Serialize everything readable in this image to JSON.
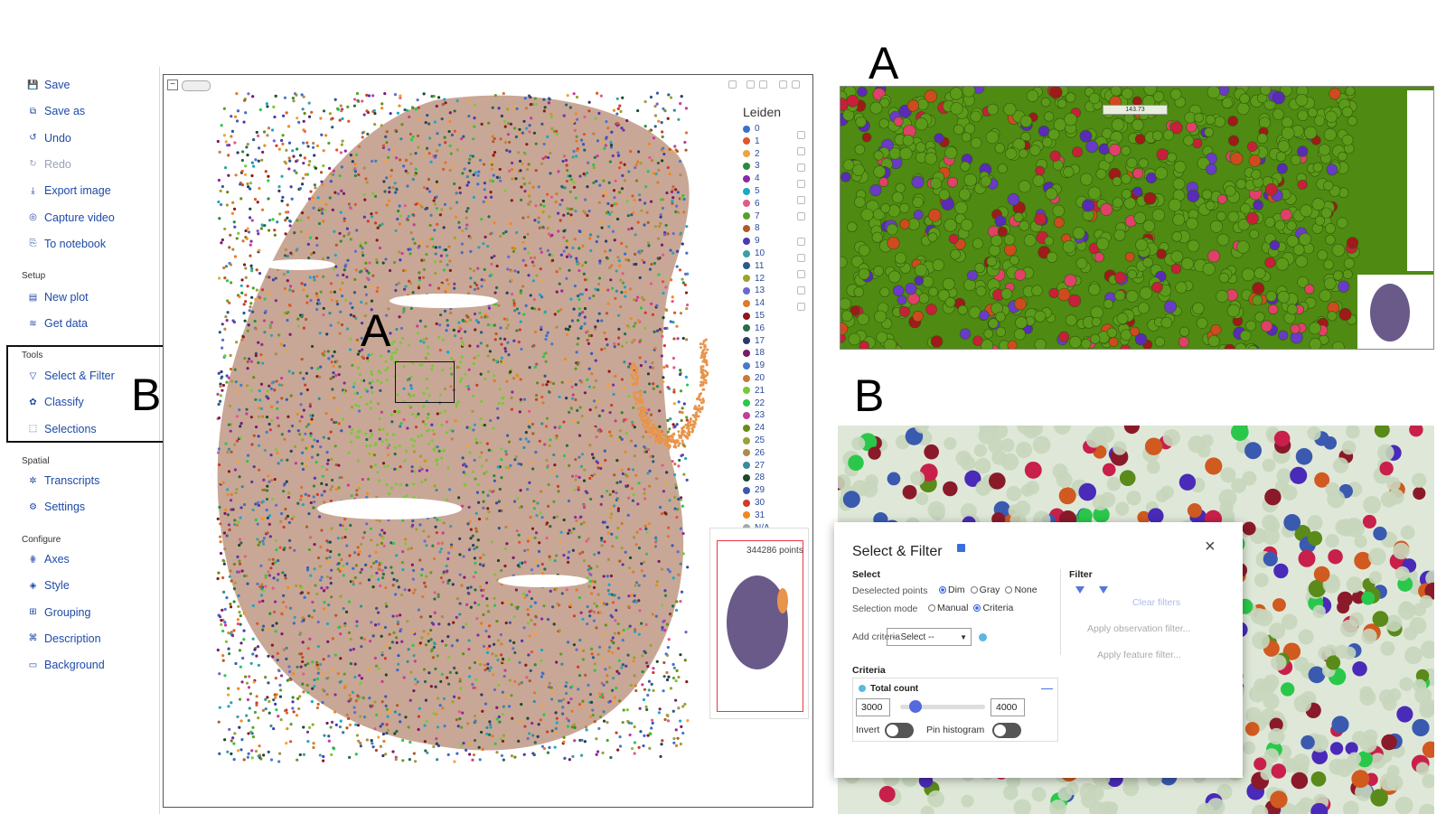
{
  "figure_labels": {
    "panel_a_letter": "A",
    "panel_b_letter": "B",
    "region_a_letter": "A",
    "tools_b_letter": "B"
  },
  "sidebar": {
    "file_items": [
      {
        "label": "Save",
        "icon": "save-icon",
        "disabled": false
      },
      {
        "label": "Save as",
        "icon": "save-as-icon",
        "disabled": false
      },
      {
        "label": "Undo",
        "icon": "undo-icon",
        "disabled": false
      },
      {
        "label": "Redo",
        "icon": "redo-icon",
        "disabled": true
      },
      {
        "label": "Export image",
        "icon": "download-icon",
        "disabled": false
      },
      {
        "label": "Capture video",
        "icon": "camera-icon",
        "disabled": false
      },
      {
        "label": "To notebook",
        "icon": "notebook-icon",
        "disabled": false
      }
    ],
    "setup_title": "Setup",
    "setup_items": [
      {
        "label": "New plot",
        "icon": "new-plot-icon"
      },
      {
        "label": "Get data",
        "icon": "database-icon"
      }
    ],
    "tools_title": "Tools",
    "tools_items": [
      {
        "label": "Select & Filter",
        "icon": "filter-icon"
      },
      {
        "label": "Classify",
        "icon": "classify-icon"
      },
      {
        "label": "Selections",
        "icon": "selections-icon"
      }
    ],
    "spatial_title": "Spatial",
    "spatial_items": [
      {
        "label": "Transcripts",
        "icon": "transcripts-icon"
      },
      {
        "label": "Settings",
        "icon": "gear-icon"
      }
    ],
    "configure_title": "Configure",
    "configure_items": [
      {
        "label": "Axes",
        "icon": "axes-icon"
      },
      {
        "label": "Style",
        "icon": "style-icon"
      },
      {
        "label": "Grouping",
        "icon": "grouping-icon"
      },
      {
        "label": "Description",
        "icon": "description-icon"
      },
      {
        "label": "Background",
        "icon": "background-icon"
      }
    ],
    "accent_color": "#1e4aa8"
  },
  "main_plot": {
    "legend_title": "Leiden",
    "legend": [
      {
        "label": "0",
        "color": "#3b6fc9"
      },
      {
        "label": "1",
        "color": "#e0562a"
      },
      {
        "label": "2",
        "color": "#f0a43a"
      },
      {
        "label": "3",
        "color": "#2a8a3a"
      },
      {
        "label": "4",
        "color": "#8a2aa0"
      },
      {
        "label": "5",
        "color": "#1aa8c8"
      },
      {
        "label": "6",
        "color": "#e05a8a"
      },
      {
        "label": "7",
        "color": "#5aa02a"
      },
      {
        "label": "8",
        "color": "#b05a2a"
      },
      {
        "label": "9",
        "color": "#4a3ab0"
      },
      {
        "label": "10",
        "color": "#3aa0a0"
      },
      {
        "label": "11",
        "color": "#2a5a8a"
      },
      {
        "label": "12",
        "color": "#a0a02a"
      },
      {
        "label": "13",
        "color": "#6a6ac8"
      },
      {
        "label": "14",
        "color": "#e07a2a"
      },
      {
        "label": "15",
        "color": "#8a1a1a"
      },
      {
        "label": "16",
        "color": "#2a6a4a"
      },
      {
        "label": "17",
        "color": "#2a3a6a"
      },
      {
        "label": "18",
        "color": "#7a1a6a"
      },
      {
        "label": "19",
        "color": "#4a7ac8"
      },
      {
        "label": "20",
        "color": "#c87a3a"
      },
      {
        "label": "21",
        "color": "#7ac83a"
      },
      {
        "label": "22",
        "color": "#2ac84a"
      },
      {
        "label": "23",
        "color": "#c83a9a"
      },
      {
        "label": "24",
        "color": "#6a8a1a"
      },
      {
        "label": "25",
        "color": "#9aa03a"
      },
      {
        "label": "26",
        "color": "#b08a4a"
      },
      {
        "label": "27",
        "color": "#3a8a9a"
      },
      {
        "label": "28",
        "color": "#1a4a2a"
      },
      {
        "label": "29",
        "color": "#3a5ab0"
      },
      {
        "label": "30",
        "color": "#d03a2a"
      },
      {
        "label": "31",
        "color": "#f08a1a"
      },
      {
        "label": "N/A",
        "color": "#aaaaaa"
      }
    ],
    "points_count": "344286 points"
  },
  "panel_a": {
    "scale_label": "143.73"
  },
  "dialog": {
    "title": "Select & Filter",
    "close_label": "×",
    "select_title": "Select",
    "deselected_label": "Deselected points",
    "deselected_options": [
      {
        "label": "Dim",
        "checked": true
      },
      {
        "label": "Gray",
        "checked": false
      },
      {
        "label": "None",
        "checked": false
      }
    ],
    "mode_label": "Selection mode",
    "mode_options": [
      {
        "label": "Manual",
        "checked": false
      },
      {
        "label": "Criteria",
        "checked": true
      }
    ],
    "add_criteria_label": "Add criteria",
    "select_placeholder": "-- Select --",
    "criteria_title": "Criteria",
    "criterion_name": "Total count",
    "range_min": "3000",
    "range_max": "4000",
    "range_fraction": 0.18,
    "invert_label": "Invert",
    "pin_label": "Pin histogram",
    "filter_title": "Filter",
    "clear_filters": "Clear filters",
    "apply_obs": "Apply observation filter...",
    "apply_feature": "Apply feature filter..."
  }
}
